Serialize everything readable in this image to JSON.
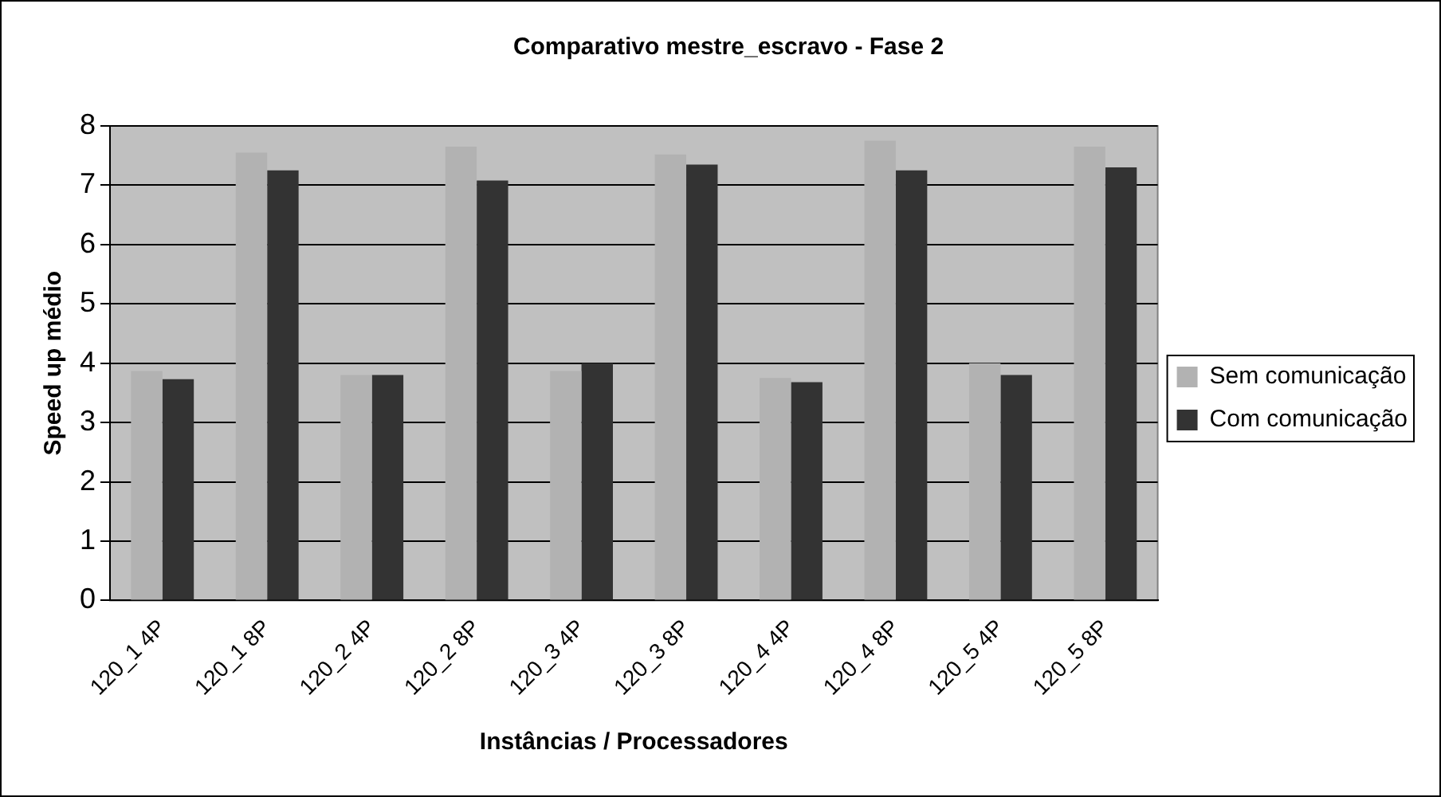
{
  "chart_data": {
    "type": "bar",
    "title": "Comparativo mestre_escravo - Fase 2",
    "xlabel": "Instâncias / Processadores",
    "ylabel": "Speed up médio",
    "categories": [
      "120_1 4P",
      "120_1 8P",
      "120_2 4P",
      "120_2 8P",
      "120_3 4P",
      "120_3 8P",
      "120_4 4P",
      "120_4 8P",
      "120_5 4P",
      "120_5 8P"
    ],
    "series": [
      {
        "name": "Sem comunicação",
        "color": "#b2b2b2",
        "values": [
          3.87,
          7.55,
          3.8,
          7.65,
          3.87,
          7.52,
          3.75,
          7.75,
          4.0,
          7.65
        ]
      },
      {
        "name": "Com comunicação",
        "color": "#333333",
        "values": [
          3.73,
          7.25,
          3.8,
          7.08,
          4.0,
          7.35,
          3.68,
          7.25,
          3.8,
          7.3
        ]
      }
    ],
    "ylim": [
      0,
      8
    ],
    "yticks": [
      0,
      1,
      2,
      3,
      4,
      5,
      6,
      7,
      8
    ],
    "grid": "y",
    "legend": "right"
  }
}
